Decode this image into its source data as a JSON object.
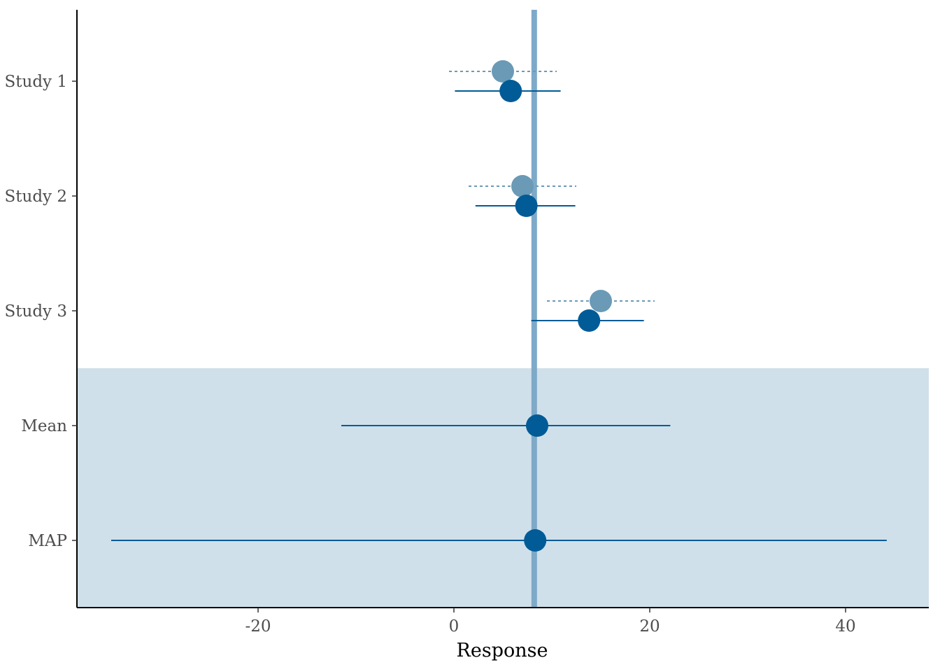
{
  "chart_data": {
    "type": "forest",
    "xlabel": "Response",
    "ylabel": "",
    "xlim": [
      -38.5,
      48.5
    ],
    "x_ticks": [
      -20,
      0,
      20,
      40
    ],
    "x_tick_labels": [
      "-20",
      "0",
      "20",
      "40"
    ],
    "categories": [
      "Study 1",
      "Study 2",
      "Study 3",
      "Mean",
      "MAP"
    ],
    "shaded_categories": [
      "Mean",
      "MAP"
    ],
    "reference_line": 8.2,
    "series": [
      {
        "style": "dotted",
        "color": "#6a9ab6",
        "points": [
          {
            "category": "Study 1",
            "estimate": 5.0,
            "lower": -0.5,
            "upper": 10.5
          },
          {
            "category": "Study 2",
            "estimate": 7.0,
            "lower": 1.5,
            "upper": 12.5
          },
          {
            "category": "Study 3",
            "estimate": 15.0,
            "lower": 9.5,
            "upper": 20.5
          }
        ]
      },
      {
        "style": "solid",
        "color": "#005b96",
        "points": [
          {
            "category": "Study 1",
            "estimate": 5.8,
            "lower": 0.1,
            "upper": 10.9
          },
          {
            "category": "Study 2",
            "estimate": 7.4,
            "lower": 2.2,
            "upper": 12.4
          },
          {
            "category": "Study 3",
            "estimate": 13.8,
            "lower": 7.9,
            "upper": 19.4
          },
          {
            "category": "Mean",
            "estimate": 8.5,
            "lower": -11.5,
            "upper": 22.1
          },
          {
            "category": "MAP",
            "estimate": 8.3,
            "lower": -35.0,
            "upper": 44.2
          }
        ]
      }
    ],
    "grid": false,
    "legend": "none",
    "colors": {
      "shade": "#d0e0ea",
      "reference": "#7ea9c8",
      "axis": "#000000"
    }
  }
}
